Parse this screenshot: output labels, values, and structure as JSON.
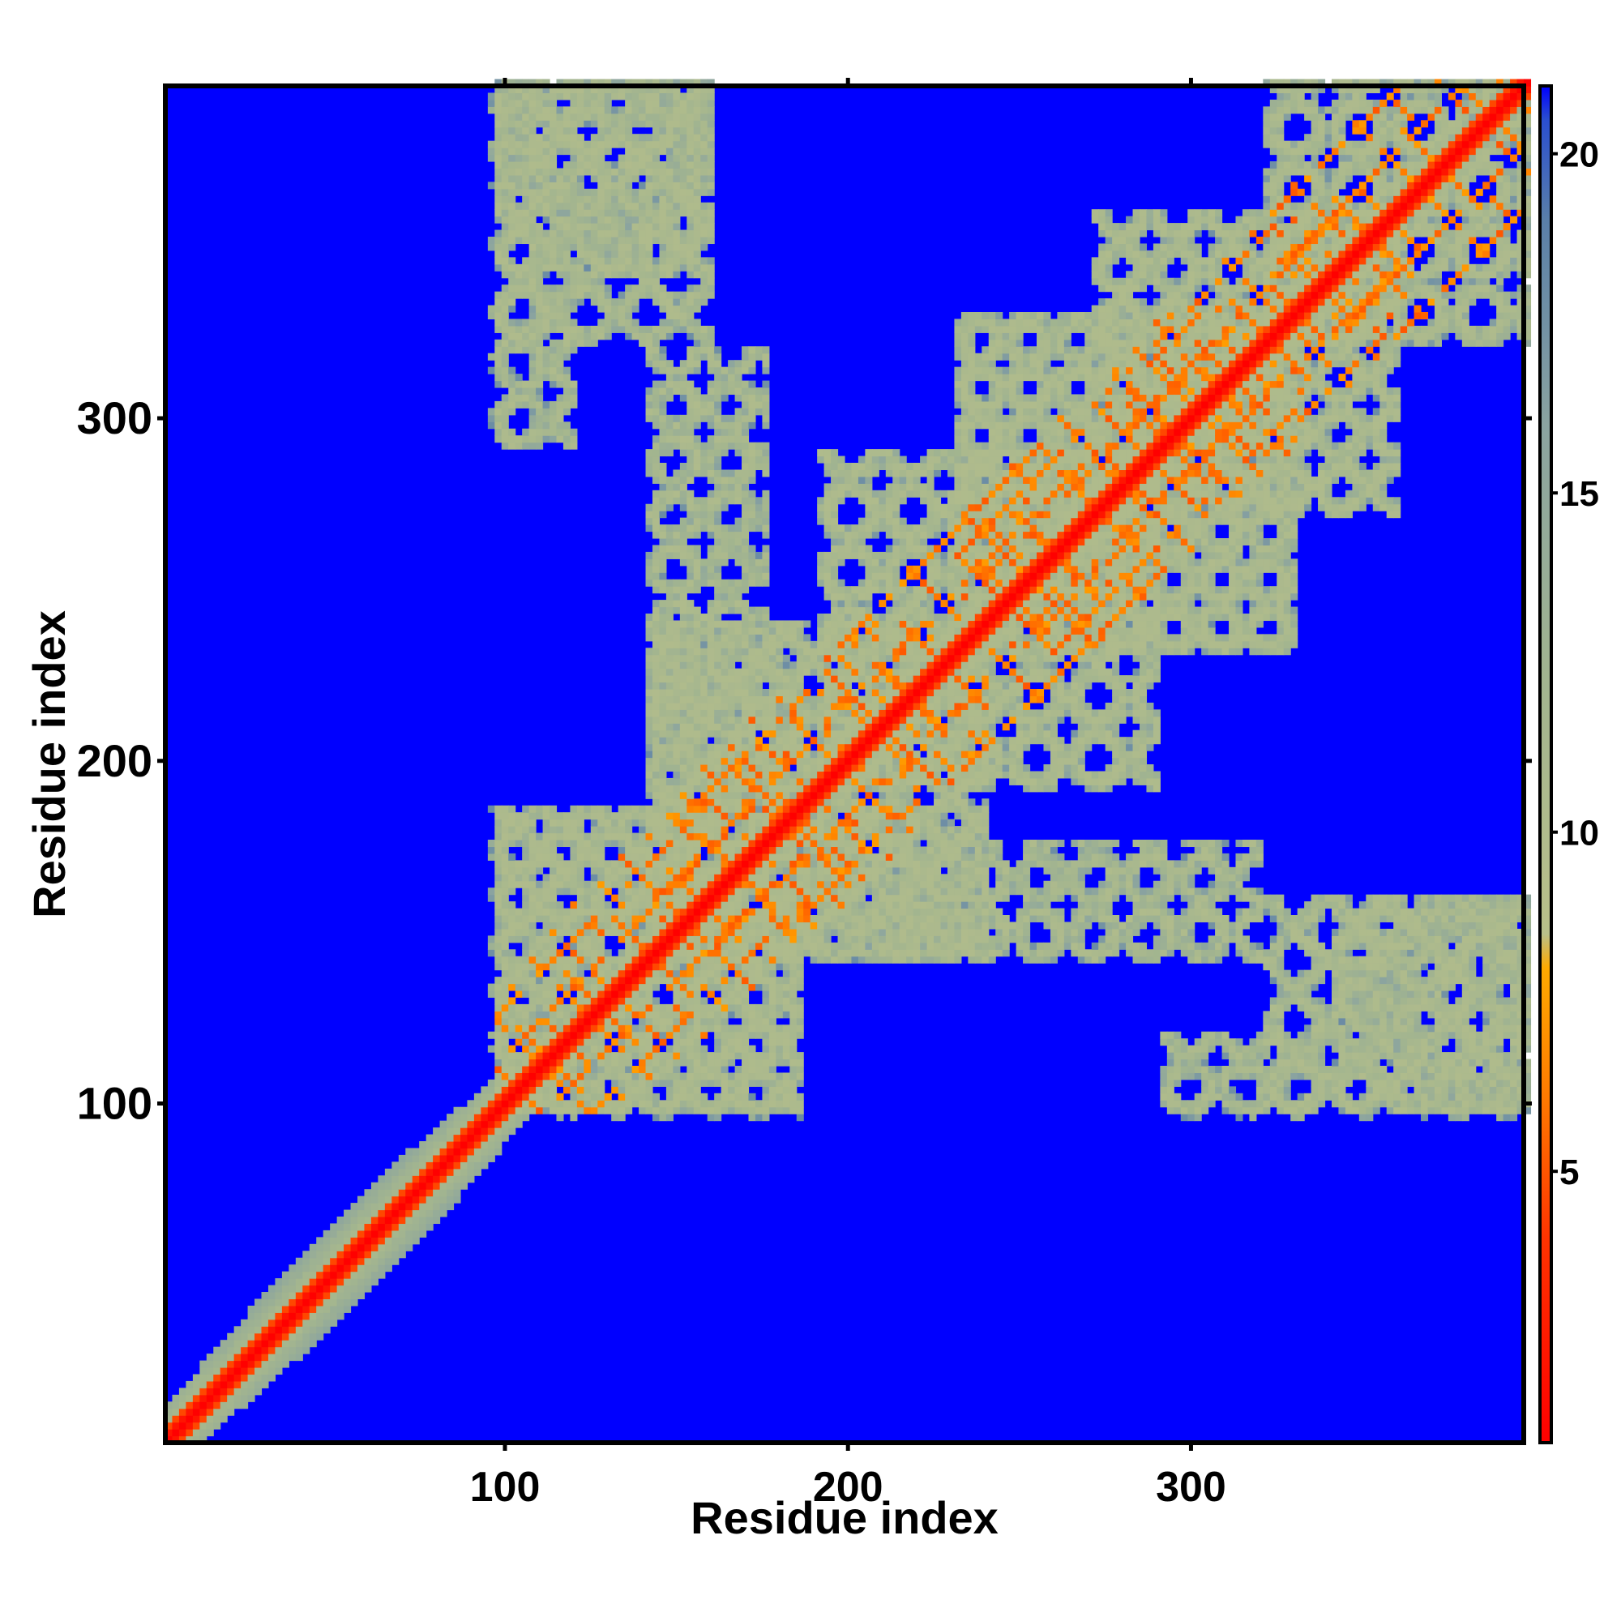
{
  "chart_data": {
    "type": "heatmap",
    "title": "",
    "xlabel": "Residue index",
    "ylabel": "Residue index",
    "xlim": [
      1,
      397
    ],
    "ylim": [
      1,
      397
    ],
    "x_ticks": [
      100,
      200,
      300
    ],
    "y_ticks": [
      100,
      200,
      300
    ],
    "x_tick_labels": [
      "100",
      "200",
      "300"
    ],
    "y_tick_labels": [
      "100",
      "200",
      "300"
    ],
    "grid": false,
    "colorbar": {
      "position": "right",
      "range": [
        1,
        21
      ],
      "ticks": [
        5,
        10,
        15,
        20
      ],
      "tick_labels": [
        "5",
        "10",
        "15",
        "20"
      ],
      "stops": [
        {
          "value": 1,
          "color": "#ff0000"
        },
        {
          "value": 4,
          "color": "#ff3300"
        },
        {
          "value": 6,
          "color": "#ff7700"
        },
        {
          "value": 8,
          "color": "#ffaa00"
        },
        {
          "value": 8.5,
          "color": "#b9c08a"
        },
        {
          "value": 12,
          "color": "#a3b58f"
        },
        {
          "value": 16,
          "color": "#8aa3a0"
        },
        {
          "value": 19,
          "color": "#5a7fa8"
        },
        {
          "value": 20.5,
          "color": "#2a4fd0"
        },
        {
          "value": 21,
          "color": "#0000ff"
        }
      ]
    },
    "background_value": 21,
    "background_color": "#0000ff",
    "diagonal_value": 1,
    "contact_band_value": 11,
    "helical_segment": {
      "start": 1,
      "end": 95
    },
    "domain_blocks": [
      {
        "x": [
          95,
          185
        ],
        "y": [
          95,
          185
        ]
      },
      {
        "x": [
          140,
          240
        ],
        "y": [
          140,
          240
        ]
      },
      {
        "x": [
          190,
          290
        ],
        "y": [
          190,
          290
        ]
      },
      {
        "x": [
          230,
          330
        ],
        "y": [
          230,
          330
        ]
      },
      {
        "x": [
          270,
          360
        ],
        "y": [
          270,
          360
        ]
      },
      {
        "x": [
          320,
          397
        ],
        "y": [
          320,
          397
        ]
      },
      {
        "x": [
          185,
          230
        ],
        "y": [
          140,
          185
        ]
      },
      {
        "x": [
          230,
          320
        ],
        "y": [
          140,
          175
        ]
      },
      {
        "x": [
          320,
          397
        ],
        "y": [
          95,
          160
        ]
      },
      {
        "x": [
          95,
          160
        ],
        "y": [
          340,
          397
        ]
      },
      {
        "x": [
          95,
          120
        ],
        "y": [
          290,
          340
        ]
      }
    ]
  }
}
